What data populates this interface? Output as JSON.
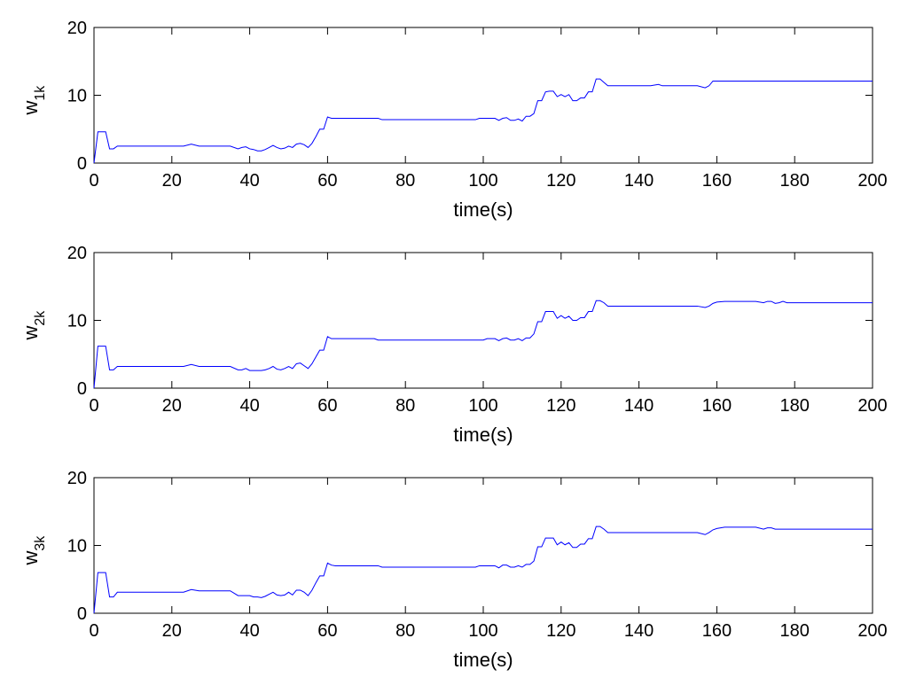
{
  "chart_data": [
    {
      "type": "line",
      "ylabel_main": "w",
      "ylabel_sub": "1k",
      "xlabel": "time(s)",
      "xlim": [
        0,
        200
      ],
      "ylim": [
        0,
        20
      ],
      "xticks": [
        0,
        20,
        40,
        60,
        80,
        100,
        120,
        140,
        160,
        180,
        200
      ],
      "yticks": [
        0,
        10,
        20
      ],
      "grid": false,
      "line_color": "#0000ff",
      "series": [
        {
          "x": [
            0,
            1,
            2,
            3,
            4,
            5,
            6,
            10,
            20,
            23,
            25,
            27,
            30,
            35,
            37,
            38,
            39,
            40,
            41,
            42,
            43,
            44,
            45,
            46,
            47,
            48,
            49,
            50,
            51,
            52,
            53,
            54,
            55,
            56,
            57,
            58,
            59,
            60,
            61,
            62,
            70,
            73,
            74,
            98,
            99,
            103,
            104,
            105,
            106,
            107,
            108,
            109,
            110,
            111,
            112,
            113,
            114,
            115,
            116,
            117,
            118,
            119,
            120,
            121,
            122,
            123,
            124,
            125,
            126,
            127,
            128,
            129,
            130,
            131,
            132,
            140,
            143,
            145,
            146,
            155,
            157,
            158,
            159,
            160,
            200
          ],
          "y": [
            0,
            4.6,
            4.6,
            4.6,
            2.1,
            2.1,
            2.5,
            2.5,
            2.5,
            2.5,
            2.8,
            2.5,
            2.5,
            2.5,
            2.1,
            2.3,
            2.4,
            2.1,
            2.0,
            1.8,
            1.8,
            2.0,
            2.3,
            2.6,
            2.3,
            2.1,
            2.2,
            2.5,
            2.3,
            2.8,
            2.9,
            2.7,
            2.3,
            2.9,
            3.9,
            5.0,
            5.0,
            6.8,
            6.6,
            6.6,
            6.6,
            6.6,
            6.4,
            6.4,
            6.6,
            6.6,
            6.3,
            6.6,
            6.7,
            6.3,
            6.3,
            6.5,
            6.2,
            6.9,
            6.9,
            7.3,
            9.2,
            9.2,
            10.5,
            10.6,
            10.6,
            9.8,
            10.1,
            9.8,
            10.1,
            9.2,
            9.2,
            9.6,
            9.6,
            10.5,
            10.5,
            12.4,
            12.4,
            11.9,
            11.4,
            11.4,
            11.4,
            11.6,
            11.4,
            11.4,
            11.1,
            11.4,
            12.1,
            12.1,
            12.1
          ]
        }
      ]
    },
    {
      "type": "line",
      "ylabel_main": "w",
      "ylabel_sub": "2k",
      "xlabel": "time(s)",
      "xlim": [
        0,
        200
      ],
      "ylim": [
        0,
        20
      ],
      "xticks": [
        0,
        20,
        40,
        60,
        80,
        100,
        120,
        140,
        160,
        180,
        200
      ],
      "yticks": [
        0,
        10,
        20
      ],
      "grid": false,
      "line_color": "#0000ff",
      "series": [
        {
          "x": [
            0,
            1,
            2,
            3,
            4,
            5,
            6,
            10,
            20,
            23,
            25,
            27,
            30,
            35,
            37,
            38,
            39,
            40,
            41,
            42,
            43,
            44,
            45,
            46,
            47,
            48,
            49,
            50,
            51,
            52,
            53,
            54,
            55,
            56,
            57,
            58,
            59,
            60,
            61,
            62,
            70,
            72,
            73,
            100,
            101,
            103,
            104,
            105,
            106,
            107,
            108,
            109,
            110,
            111,
            112,
            113,
            114,
            115,
            116,
            117,
            118,
            119,
            120,
            121,
            122,
            123,
            124,
            125,
            126,
            127,
            128,
            129,
            130,
            131,
            132,
            140,
            150,
            155,
            157,
            158,
            159,
            160,
            162,
            170,
            172,
            173,
            174,
            175,
            176,
            177,
            178,
            200
          ],
          "y": [
            0,
            6.2,
            6.2,
            6.2,
            2.7,
            2.7,
            3.2,
            3.2,
            3.2,
            3.2,
            3.5,
            3.2,
            3.2,
            3.2,
            2.7,
            2.7,
            2.9,
            2.6,
            2.6,
            2.6,
            2.6,
            2.7,
            2.9,
            3.2,
            2.8,
            2.7,
            2.9,
            3.2,
            2.9,
            3.6,
            3.7,
            3.3,
            2.9,
            3.6,
            4.6,
            5.6,
            5.6,
            7.6,
            7.3,
            7.3,
            7.3,
            7.3,
            7.1,
            7.1,
            7.3,
            7.3,
            7.0,
            7.3,
            7.4,
            7.1,
            7.1,
            7.3,
            7.0,
            7.4,
            7.4,
            8.0,
            9.8,
            9.8,
            11.3,
            11.3,
            11.3,
            10.3,
            10.7,
            10.3,
            10.6,
            10.0,
            10.0,
            10.4,
            10.4,
            11.3,
            11.3,
            12.9,
            12.9,
            12.6,
            12.1,
            12.1,
            12.1,
            12.1,
            11.9,
            12.1,
            12.5,
            12.7,
            12.8,
            12.8,
            12.6,
            12.8,
            12.8,
            12.5,
            12.6,
            12.8,
            12.6,
            12.6
          ]
        }
      ]
    },
    {
      "type": "line",
      "ylabel_main": "w",
      "ylabel_sub": "3k",
      "xlabel": "time(s)",
      "xlim": [
        0,
        200
      ],
      "ylim": [
        0,
        20
      ],
      "xticks": [
        0,
        20,
        40,
        60,
        80,
        100,
        120,
        140,
        160,
        180,
        200
      ],
      "yticks": [
        0,
        10,
        20
      ],
      "grid": false,
      "line_color": "#0000ff",
      "series": [
        {
          "x": [
            0,
            1,
            2,
            3,
            4,
            5,
            6,
            10,
            20,
            23,
            25,
            27,
            30,
            35,
            37,
            38,
            40,
            41,
            42,
            43,
            44,
            45,
            46,
            47,
            48,
            49,
            50,
            51,
            52,
            53,
            54,
            55,
            56,
            57,
            58,
            59,
            60,
            61,
            62,
            70,
            73,
            74,
            98,
            99,
            103,
            104,
            105,
            106,
            107,
            108,
            109,
            110,
            111,
            112,
            113,
            114,
            115,
            116,
            117,
            118,
            119,
            120,
            121,
            122,
            123,
            124,
            125,
            126,
            127,
            128,
            129,
            130,
            131,
            132,
            140,
            150,
            155,
            157,
            158,
            159,
            160,
            162,
            170,
            172,
            173,
            174,
            175,
            176,
            200
          ],
          "y": [
            0,
            6.0,
            6.0,
            6.0,
            2.4,
            2.4,
            3.1,
            3.1,
            3.1,
            3.1,
            3.5,
            3.3,
            3.3,
            3.3,
            2.6,
            2.6,
            2.6,
            2.4,
            2.4,
            2.3,
            2.5,
            2.8,
            3.1,
            2.7,
            2.6,
            2.7,
            3.1,
            2.7,
            3.4,
            3.4,
            3.1,
            2.6,
            3.4,
            4.5,
            5.5,
            5.5,
            7.4,
            7.1,
            7.0,
            7.0,
            7.0,
            6.8,
            6.8,
            7.0,
            7.0,
            6.7,
            7.1,
            7.1,
            6.8,
            6.8,
            7.0,
            6.8,
            7.2,
            7.2,
            7.7,
            9.8,
            9.8,
            11.1,
            11.1,
            11.1,
            10.1,
            10.5,
            10.1,
            10.4,
            9.7,
            9.7,
            10.2,
            10.2,
            11.0,
            11.0,
            12.8,
            12.8,
            12.4,
            11.9,
            11.9,
            11.9,
            11.9,
            11.6,
            11.9,
            12.3,
            12.5,
            12.7,
            12.7,
            12.4,
            12.6,
            12.6,
            12.4,
            12.4,
            12.4
          ]
        }
      ]
    }
  ]
}
